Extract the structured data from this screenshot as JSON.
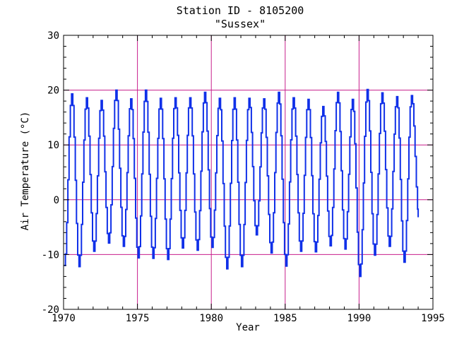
{
  "chart_data": {
    "type": "line",
    "title": "Station ID - 8105200",
    "subtitle": "\"Sussex\"",
    "xlabel": "Year",
    "ylabel": "Air Temperature (°C)",
    "xlim": [
      1970,
      1995
    ],
    "ylim": [
      -20,
      30
    ],
    "xticks": [
      1970,
      1975,
      1980,
      1985,
      1990,
      1995
    ],
    "yticks": [
      -20,
      -10,
      0,
      10,
      20,
      30
    ],
    "ref_lines_y": [
      -10,
      0,
      10,
      20
    ],
    "ref_lines_x": [
      1975,
      1980,
      1985,
      1990
    ],
    "colors": {
      "series": "#1030e8",
      "grid": "#c81e8c",
      "axis": "#000000"
    },
    "series": [
      {
        "annual": [
          {
            "year": 1970,
            "min": -12.0,
            "max": 19.3
          },
          {
            "year": 1971,
            "min": -12.2,
            "max": 18.6
          },
          {
            "year": 1972,
            "min": -9.4,
            "max": 18.1
          },
          {
            "year": 1973,
            "min": -7.9,
            "max": 20.0
          },
          {
            "year": 1974,
            "min": -8.5,
            "max": 18.4
          },
          {
            "year": 1975,
            "min": -10.6,
            "max": 20.0
          },
          {
            "year": 1976,
            "min": -10.7,
            "max": 18.5
          },
          {
            "year": 1977,
            "min": -10.9,
            "max": 18.6
          },
          {
            "year": 1978,
            "min": -8.8,
            "max": 18.6
          },
          {
            "year": 1979,
            "min": -9.2,
            "max": 19.6
          },
          {
            "year": 1980,
            "min": -8.7,
            "max": 18.5
          },
          {
            "year": 1981,
            "min": -12.6,
            "max": 18.6
          },
          {
            "year": 1982,
            "min": -12.2,
            "max": 18.5
          },
          {
            "year": 1983,
            "min": -6.4,
            "max": 18.4
          },
          {
            "year": 1984,
            "min": -9.7,
            "max": 19.6
          },
          {
            "year": 1985,
            "min": -12.1,
            "max": 18.6
          },
          {
            "year": 1986,
            "min": -9.4,
            "max": 18.3
          },
          {
            "year": 1987,
            "min": -9.5,
            "max": 17.0
          },
          {
            "year": 1988,
            "min": -8.4,
            "max": 19.6
          },
          {
            "year": 1989,
            "min": -9.0,
            "max": 18.3
          },
          {
            "year": 1990,
            "min": -14.0,
            "max": 20.1
          },
          {
            "year": 1991,
            "min": -10.1,
            "max": 19.5
          },
          {
            "year": 1992,
            "min": -8.5,
            "max": 18.8
          },
          {
            "year": 1993,
            "min": -11.4,
            "max": 19.0
          }
        ],
        "end_year": 1994.0,
        "end_value": -3.2
      }
    ]
  }
}
